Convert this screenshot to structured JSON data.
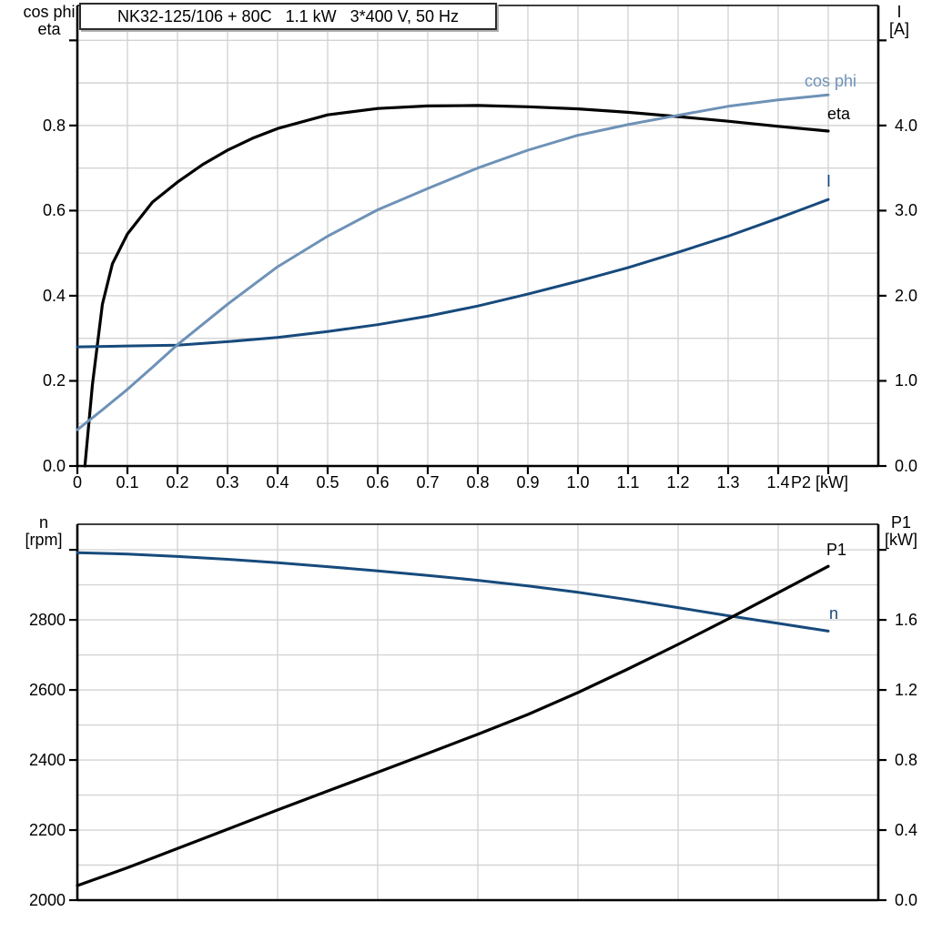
{
  "title_box": {
    "text": "NK32-125/106 + 80C   1.1 kW   3*400 V, 50 Hz"
  },
  "colors": {
    "black": "#000000",
    "light_blue": "#6e92b7",
    "dark_blue": "#174a7c",
    "grid": "#d4d4d4",
    "axis": "#000000"
  },
  "chart_data": [
    {
      "id": "chart-top",
      "type": "line",
      "title": "NK32-125/106 + 80C   1.1 kW   3*400 V, 50 Hz",
      "x_axis": {
        "label": "P2 [kW]",
        "min": 0,
        "max": 1.6,
        "grid_step": 0.1,
        "ticks": [
          0,
          0.1,
          0.2,
          0.3,
          0.4,
          0.5,
          0.6,
          0.7,
          0.8,
          0.9,
          1.0,
          1.1,
          1.2,
          1.3,
          1.4,
          1.5
        ],
        "tick_labels": [
          "0",
          "0.1",
          "0.2",
          "0.3",
          "0.4",
          "0.5",
          "0.6",
          "0.7",
          "0.8",
          "0.9",
          "1.0",
          "1.1",
          "1.2",
          "1.3",
          "1.4",
          ""
        ]
      },
      "left_axis": {
        "title_lines": [
          "cos phi",
          "eta"
        ],
        "min": 0,
        "max": 1.082,
        "grid_step": 0.1,
        "ticks": [
          0,
          0.2,
          0.4,
          0.6,
          0.8,
          1.0
        ],
        "tick_labels": [
          "0.0",
          "0.2",
          "0.4",
          "0.6",
          "0.8",
          ""
        ]
      },
      "right_axis": {
        "title_lines": [
          "I",
          "[A]"
        ],
        "min": 0,
        "max": 5.41,
        "ticks": [
          0,
          1,
          2,
          3,
          4,
          5
        ],
        "tick_labels": [
          "0.0",
          "1.0",
          "2.0",
          "3.0",
          "4.0",
          ""
        ]
      },
      "series": [
        {
          "name": "eta",
          "axis": "left",
          "color": "#000000",
          "width": 3.2,
          "points": [
            [
              0.015,
              0
            ],
            [
              0.03,
              0.19
            ],
            [
              0.05,
              0.38
            ],
            [
              0.07,
              0.475
            ],
            [
              0.1,
              0.545
            ],
            [
              0.15,
              0.62
            ],
            [
              0.2,
              0.667
            ],
            [
              0.25,
              0.708
            ],
            [
              0.3,
              0.742
            ],
            [
              0.35,
              0.77
            ],
            [
              0.4,
              0.793
            ],
            [
              0.5,
              0.825
            ],
            [
              0.6,
              0.84
            ],
            [
              0.7,
              0.846
            ],
            [
              0.8,
              0.847
            ],
            [
              0.9,
              0.844
            ],
            [
              1.0,
              0.839
            ],
            [
              1.1,
              0.831
            ],
            [
              1.2,
              0.821
            ],
            [
              1.3,
              0.81
            ],
            [
              1.4,
              0.798
            ],
            [
              1.5,
              0.787
            ]
          ]
        },
        {
          "name": "I",
          "axis": "right",
          "color": "#174a7c",
          "width": 3,
          "points": [
            [
              0,
              1.4
            ],
            [
              0.1,
              1.41
            ],
            [
              0.2,
              1.42
            ],
            [
              0.3,
              1.46
            ],
            [
              0.4,
              1.51
            ],
            [
              0.5,
              1.58
            ],
            [
              0.6,
              1.66
            ],
            [
              0.7,
              1.76
            ],
            [
              0.8,
              1.88
            ],
            [
              0.9,
              2.02
            ],
            [
              1.0,
              2.17
            ],
            [
              1.1,
              2.33
            ],
            [
              1.2,
              2.51
            ],
            [
              1.3,
              2.7
            ],
            [
              1.4,
              2.91
            ],
            [
              1.5,
              3.13
            ]
          ]
        },
        {
          "name": "cos phi",
          "axis": "left",
          "color": "#6e92b7",
          "width": 3,
          "points": [
            [
              0,
              0.085
            ],
            [
              0.05,
              0.132
            ],
            [
              0.1,
              0.18
            ],
            [
              0.15,
              0.232
            ],
            [
              0.2,
              0.285
            ],
            [
              0.3,
              0.38
            ],
            [
              0.4,
              0.468
            ],
            [
              0.5,
              0.54
            ],
            [
              0.6,
              0.602
            ],
            [
              0.7,
              0.652
            ],
            [
              0.8,
              0.7
            ],
            [
              0.9,
              0.742
            ],
            [
              1.0,
              0.777
            ],
            [
              1.1,
              0.802
            ],
            [
              1.2,
              0.824
            ],
            [
              1.3,
              0.845
            ],
            [
              1.4,
              0.86
            ],
            [
              1.5,
              0.872
            ]
          ]
        }
      ]
    },
    {
      "id": "chart-bottom",
      "type": "line",
      "x_axis": {
        "label": "",
        "min": 0,
        "max": 1.6,
        "grid_step": 0.2,
        "ticks": [],
        "tick_labels": []
      },
      "left_axis": {
        "title_lines": [
          "n",
          "[rpm]"
        ],
        "min": 2000,
        "max": 3073,
        "grid_step": 100,
        "ticks": [
          2000,
          2200,
          2400,
          2600,
          2800,
          3000
        ],
        "tick_labels": [
          "2000",
          "2200",
          "2400",
          "2600",
          "2800",
          ""
        ]
      },
      "right_axis": {
        "title_lines": [
          "P1",
          "[kW]"
        ],
        "min": 0,
        "max": 2.146,
        "ticks": [
          0,
          0.4,
          0.8,
          1.2,
          1.6,
          2.0
        ],
        "tick_labels": [
          "0.0",
          "0.4",
          "0.8",
          "1.2",
          "1.6",
          ""
        ]
      },
      "series": [
        {
          "name": "n",
          "axis": "left",
          "color": "#174a7c",
          "width": 3,
          "points": [
            [
              0,
              2992
            ],
            [
              0.1,
              2988
            ],
            [
              0.2,
              2981
            ],
            [
              0.3,
              2973
            ],
            [
              0.4,
              2963
            ],
            [
              0.5,
              2952
            ],
            [
              0.6,
              2940
            ],
            [
              0.7,
              2927
            ],
            [
              0.8,
              2913
            ],
            [
              0.9,
              2897
            ],
            [
              1.0,
              2879
            ],
            [
              1.1,
              2858
            ],
            [
              1.2,
              2835
            ],
            [
              1.3,
              2812
            ],
            [
              1.4,
              2790
            ],
            [
              1.5,
              2768
            ]
          ]
        },
        {
          "name": "P1",
          "axis": "right",
          "color": "#000000",
          "width": 3.2,
          "points": [
            [
              0,
              0.083
            ],
            [
              0.1,
              0.185
            ],
            [
              0.2,
              0.295
            ],
            [
              0.3,
              0.405
            ],
            [
              0.4,
              0.515
            ],
            [
              0.5,
              0.623
            ],
            [
              0.6,
              0.73
            ],
            [
              0.7,
              0.838
            ],
            [
              0.8,
              0.947
            ],
            [
              0.9,
              1.06
            ],
            [
              1.0,
              1.185
            ],
            [
              1.1,
              1.32
            ],
            [
              1.2,
              1.46
            ],
            [
              1.3,
              1.605
            ],
            [
              1.4,
              1.755
            ],
            [
              1.5,
              1.906
            ]
          ]
        }
      ]
    }
  ],
  "curve_labels": [
    {
      "text": "cos phi",
      "color": "#6e92b7"
    },
    {
      "text": "eta",
      "color": "#000000"
    },
    {
      "text": "I",
      "color": "#174a7c"
    },
    {
      "text": "P1",
      "color": "#000000"
    },
    {
      "text": "n",
      "color": "#174a7c"
    }
  ]
}
